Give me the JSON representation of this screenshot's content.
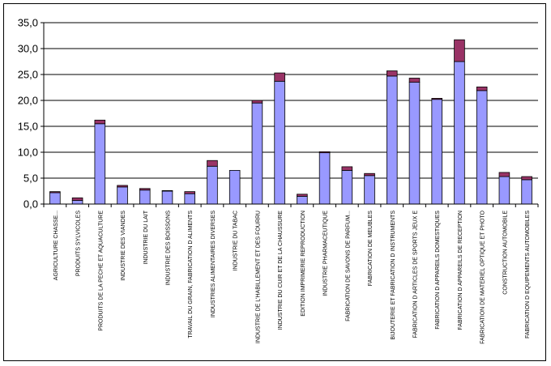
{
  "chart_data": {
    "type": "bar",
    "stacked": true,
    "title": "",
    "xlabel": "",
    "ylabel": "",
    "ylim": [
      0,
      35
    ],
    "y_ticks": [
      "0,0",
      "5,0",
      "10,0",
      "15,0",
      "20,0",
      "25,0",
      "30,0",
      "35,0"
    ],
    "grid": true,
    "legend": "none",
    "categories": [
      "AGRICULTURE CHASSE...",
      "PRODUITS SYLVICOLES",
      "PRODUITS DE LA PECHE ET AQUACULTURE",
      "INDUSTRIE DES VIANDES",
      "INDUSTRIE DU LAIT",
      "INDUSTRIE DES BOISSONS",
      "TRAVAIL DU GRAIN, FABRICATION D ALIMENTS",
      "INDUSTRIES ALIMENTAIRES DIVERSES",
      "INDUSTRIE DU TABAC",
      "INDUSTRIE DE L'HABILLEMENT ET DES FOURRU",
      "INDUSTRIE DU CUIR ET DE LA CHAUSSURE",
      "EDITION IMPRIMERIE REPRODUCTION",
      "INDUSTRIE PHARMACEUTIQUE",
      "FABRICATION DE SAVONS DE PARFUM...",
      "FABRICATION DE MEUBLES",
      "BIJOUTERIE ET FABRICATION D INSTRUMENTS",
      "FABRICATION D ARTICLES DE SPORTS JEUX E",
      "FABRICATION D APPAREILS DOMESTIQUES",
      "FABRICATION D APPAREILS DE RECEPTION",
      "FABRICATION DE MATERIEL OPTIQUE ET PHOTO",
      "CONSTRUCTION AUTOMOBILE",
      "FABRICATION D EQUIPEMENTS AUTOMOBILES"
    ],
    "series": [
      {
        "color": "#9999ff",
        "values": [
          2.2,
          0.7,
          15.5,
          3.3,
          2.7,
          2.5,
          2.0,
          7.3,
          6.5,
          19.5,
          23.7,
          1.5,
          9.9,
          6.5,
          5.5,
          24.7,
          23.5,
          20.2,
          27.5,
          21.9,
          5.3,
          4.7
        ]
      },
      {
        "color": "#993366",
        "values": [
          0.2,
          0.5,
          0.7,
          0.3,
          0.3,
          0.1,
          0.4,
          1.1,
          0.0,
          0.5,
          1.6,
          0.4,
          0.2,
          0.7,
          0.4,
          1.0,
          0.8,
          0.2,
          4.2,
          0.7,
          0.8,
          0.6
        ]
      }
    ]
  }
}
